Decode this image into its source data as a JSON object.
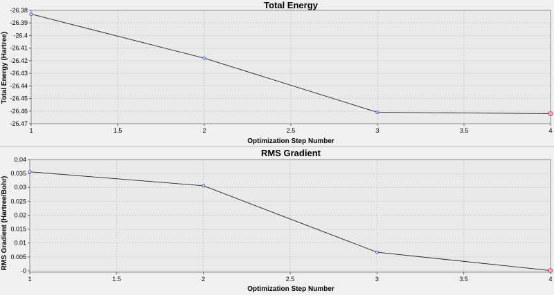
{
  "chart_data": [
    {
      "type": "line",
      "title": "Total Energy",
      "xlabel": "Optimization Step Number",
      "ylabel": "Total Energy (Hartree)",
      "x": [
        1,
        2,
        3,
        4
      ],
      "series": [
        {
          "values": [
            -26.383,
            -26.418,
            -26.461,
            -26.462
          ]
        }
      ],
      "xlim": [
        1,
        4
      ],
      "ylim": [
        -26.47,
        -26.38
      ],
      "xticks": [
        "1",
        "1.5",
        "2",
        "2.5",
        "3",
        "3.5",
        "4"
      ],
      "yticks": [
        "-26.38",
        "-26.39",
        "-26.4",
        "-26.41",
        "-26.42",
        "-26.43",
        "-26.44",
        "-26.45",
        "-26.46",
        "-26.47"
      ],
      "grid": true,
      "highlight_color": "#c2304f",
      "point_color": "#3a4bd6"
    },
    {
      "type": "line",
      "title": "RMS Gradient",
      "xlabel": "Optimization Step Number",
      "ylabel": "RMS Gradient (Hartree/Bohr)",
      "x": [
        1,
        2,
        3,
        4
      ],
      "series": [
        {
          "values": [
            0.0356,
            0.0306,
            0.0067,
            0.0001
          ]
        }
      ],
      "xlim": [
        1,
        4
      ],
      "ylim": [
        -0.0005,
        0.04
      ],
      "xticks": [
        "1",
        "1.5",
        "2",
        "2.5",
        "3",
        "3.5",
        "4"
      ],
      "yticks": [
        "0.04",
        "0.035",
        "0.03",
        "0.025",
        "0.02",
        "0.015",
        "0.01",
        "0.005",
        "-0"
      ],
      "ytick_values": [
        0.04,
        0.035,
        0.03,
        0.025,
        0.02,
        0.015,
        0.01,
        0.005,
        0
      ],
      "grid": true,
      "highlight_color": "#c2304f",
      "point_color": "#3a4bd6"
    }
  ]
}
